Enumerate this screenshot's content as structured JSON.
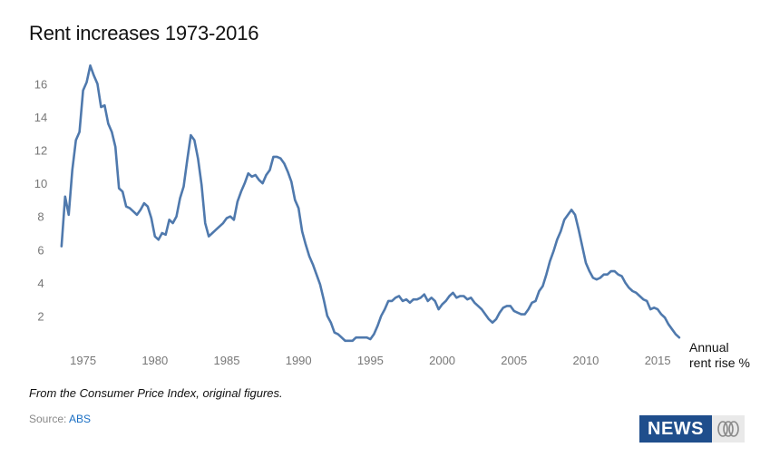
{
  "title": "Rent increases 1973-2016",
  "axis_caption": "Annual rent rise %",
  "note": "From the Consumer Price Index, original figures.",
  "source": {
    "label": "Source:",
    "link_text": "ABS"
  },
  "logo": {
    "text": "NEWS",
    "icon": "abc-logo-icon"
  },
  "colors": {
    "line": "#4f79ad",
    "tick_text": "#777777",
    "logo_bg": "#1f4e8c",
    "link": "#1a6fc4"
  },
  "chart_data": {
    "type": "line",
    "title": "Rent increases 1973-2016",
    "ylabel": "Annual rent rise %",
    "xlim": [
      1972.5,
      2017.2
    ],
    "ylim": [
      0,
      17.5
    ],
    "x_ticks": [
      1975,
      1980,
      1985,
      1990,
      1995,
      2000,
      2005,
      2010,
      2015
    ],
    "y_ticks": [
      2,
      4,
      6,
      8,
      10,
      12,
      14,
      16
    ],
    "grid": false,
    "series": [
      {
        "points": [
          [
            1973.5,
            6.2
          ],
          [
            1973.75,
            9.2
          ],
          [
            1974.0,
            8.1
          ],
          [
            1974.25,
            10.8
          ],
          [
            1974.5,
            12.6
          ],
          [
            1974.75,
            13.1
          ],
          [
            1975.0,
            15.6
          ],
          [
            1975.25,
            16.1
          ],
          [
            1975.5,
            17.1
          ],
          [
            1975.75,
            16.5
          ],
          [
            1976.0,
            16.0
          ],
          [
            1976.25,
            14.6
          ],
          [
            1976.5,
            14.7
          ],
          [
            1976.75,
            13.6
          ],
          [
            1977.0,
            13.1
          ],
          [
            1977.25,
            12.2
          ],
          [
            1977.5,
            9.7
          ],
          [
            1977.75,
            9.5
          ],
          [
            1978.0,
            8.6
          ],
          [
            1978.25,
            8.5
          ],
          [
            1978.5,
            8.3
          ],
          [
            1978.75,
            8.1
          ],
          [
            1979.0,
            8.4
          ],
          [
            1979.25,
            8.8
          ],
          [
            1979.5,
            8.6
          ],
          [
            1979.75,
            7.9
          ],
          [
            1980.0,
            6.8
          ],
          [
            1980.25,
            6.6
          ],
          [
            1980.5,
            7.0
          ],
          [
            1980.75,
            6.9
          ],
          [
            1981.0,
            7.8
          ],
          [
            1981.25,
            7.6
          ],
          [
            1981.5,
            8.0
          ],
          [
            1981.75,
            9.1
          ],
          [
            1982.0,
            9.8
          ],
          [
            1982.25,
            11.4
          ],
          [
            1982.5,
            12.9
          ],
          [
            1982.75,
            12.6
          ],
          [
            1983.0,
            11.5
          ],
          [
            1983.25,
            9.9
          ],
          [
            1983.5,
            7.6
          ],
          [
            1983.75,
            6.8
          ],
          [
            1984.0,
            7.0
          ],
          [
            1984.25,
            7.2
          ],
          [
            1984.5,
            7.4
          ],
          [
            1984.75,
            7.6
          ],
          [
            1985.0,
            7.9
          ],
          [
            1985.25,
            8.0
          ],
          [
            1985.5,
            7.8
          ],
          [
            1985.75,
            8.9
          ],
          [
            1986.0,
            9.5
          ],
          [
            1986.25,
            10.0
          ],
          [
            1986.5,
            10.6
          ],
          [
            1986.75,
            10.4
          ],
          [
            1987.0,
            10.5
          ],
          [
            1987.25,
            10.2
          ],
          [
            1987.5,
            10.0
          ],
          [
            1987.75,
            10.5
          ],
          [
            1988.0,
            10.8
          ],
          [
            1988.25,
            11.6
          ],
          [
            1988.5,
            11.6
          ],
          [
            1988.75,
            11.5
          ],
          [
            1989.0,
            11.2
          ],
          [
            1989.25,
            10.7
          ],
          [
            1989.5,
            10.1
          ],
          [
            1989.75,
            9.0
          ],
          [
            1990.0,
            8.5
          ],
          [
            1990.25,
            7.1
          ],
          [
            1990.5,
            6.3
          ],
          [
            1990.75,
            5.6
          ],
          [
            1991.0,
            5.1
          ],
          [
            1991.25,
            4.5
          ],
          [
            1991.5,
            3.9
          ],
          [
            1991.75,
            3.0
          ],
          [
            1992.0,
            2.0
          ],
          [
            1992.25,
            1.6
          ],
          [
            1992.5,
            1.0
          ],
          [
            1992.75,
            0.9
          ],
          [
            1993.0,
            0.7
          ],
          [
            1993.25,
            0.5
          ],
          [
            1993.5,
            0.5
          ],
          [
            1993.75,
            0.5
          ],
          [
            1994.0,
            0.7
          ],
          [
            1994.25,
            0.7
          ],
          [
            1994.5,
            0.7
          ],
          [
            1994.75,
            0.7
          ],
          [
            1995.0,
            0.6
          ],
          [
            1995.25,
            0.9
          ],
          [
            1995.5,
            1.4
          ],
          [
            1995.75,
            2.0
          ],
          [
            1996.0,
            2.4
          ],
          [
            1996.25,
            2.9
          ],
          [
            1996.5,
            2.9
          ],
          [
            1996.75,
            3.1
          ],
          [
            1997.0,
            3.2
          ],
          [
            1997.25,
            2.9
          ],
          [
            1997.5,
            3.0
          ],
          [
            1997.75,
            2.8
          ],
          [
            1998.0,
            3.0
          ],
          [
            1998.25,
            3.0
          ],
          [
            1998.5,
            3.1
          ],
          [
            1998.75,
            3.3
          ],
          [
            1999.0,
            2.9
          ],
          [
            1999.25,
            3.1
          ],
          [
            1999.5,
            2.9
          ],
          [
            1999.75,
            2.4
          ],
          [
            2000.0,
            2.7
          ],
          [
            2000.25,
            2.9
          ],
          [
            2000.5,
            3.2
          ],
          [
            2000.75,
            3.4
          ],
          [
            2001.0,
            3.1
          ],
          [
            2001.25,
            3.2
          ],
          [
            2001.5,
            3.2
          ],
          [
            2001.75,
            3.0
          ],
          [
            2002.0,
            3.1
          ],
          [
            2002.25,
            2.8
          ],
          [
            2002.5,
            2.6
          ],
          [
            2002.75,
            2.4
          ],
          [
            2003.0,
            2.1
          ],
          [
            2003.25,
            1.8
          ],
          [
            2003.5,
            1.6
          ],
          [
            2003.75,
            1.8
          ],
          [
            2004.0,
            2.2
          ],
          [
            2004.25,
            2.5
          ],
          [
            2004.5,
            2.6
          ],
          [
            2004.75,
            2.6
          ],
          [
            2005.0,
            2.3
          ],
          [
            2005.25,
            2.2
          ],
          [
            2005.5,
            2.1
          ],
          [
            2005.75,
            2.1
          ],
          [
            2006.0,
            2.4
          ],
          [
            2006.25,
            2.8
          ],
          [
            2006.5,
            2.9
          ],
          [
            2006.75,
            3.5
          ],
          [
            2007.0,
            3.8
          ],
          [
            2007.25,
            4.5
          ],
          [
            2007.5,
            5.3
          ],
          [
            2007.75,
            5.9
          ],
          [
            2008.0,
            6.6
          ],
          [
            2008.25,
            7.1
          ],
          [
            2008.5,
            7.8
          ],
          [
            2008.75,
            8.1
          ],
          [
            2009.0,
            8.4
          ],
          [
            2009.25,
            8.1
          ],
          [
            2009.5,
            7.2
          ],
          [
            2009.75,
            6.2
          ],
          [
            2010.0,
            5.2
          ],
          [
            2010.25,
            4.7
          ],
          [
            2010.5,
            4.3
          ],
          [
            2010.75,
            4.2
          ],
          [
            2011.0,
            4.3
          ],
          [
            2011.25,
            4.5
          ],
          [
            2011.5,
            4.5
          ],
          [
            2011.75,
            4.7
          ],
          [
            2012.0,
            4.7
          ],
          [
            2012.25,
            4.5
          ],
          [
            2012.5,
            4.4
          ],
          [
            2012.75,
            4.0
          ],
          [
            2013.0,
            3.7
          ],
          [
            2013.25,
            3.5
          ],
          [
            2013.5,
            3.4
          ],
          [
            2013.75,
            3.2
          ],
          [
            2014.0,
            3.0
          ],
          [
            2014.25,
            2.9
          ],
          [
            2014.5,
            2.4
          ],
          [
            2014.75,
            2.5
          ],
          [
            2015.0,
            2.4
          ],
          [
            2015.25,
            2.1
          ],
          [
            2015.5,
            1.9
          ],
          [
            2015.75,
            1.5
          ],
          [
            2016.0,
            1.2
          ],
          [
            2016.25,
            0.9
          ],
          [
            2016.5,
            0.7
          ]
        ]
      }
    ]
  }
}
